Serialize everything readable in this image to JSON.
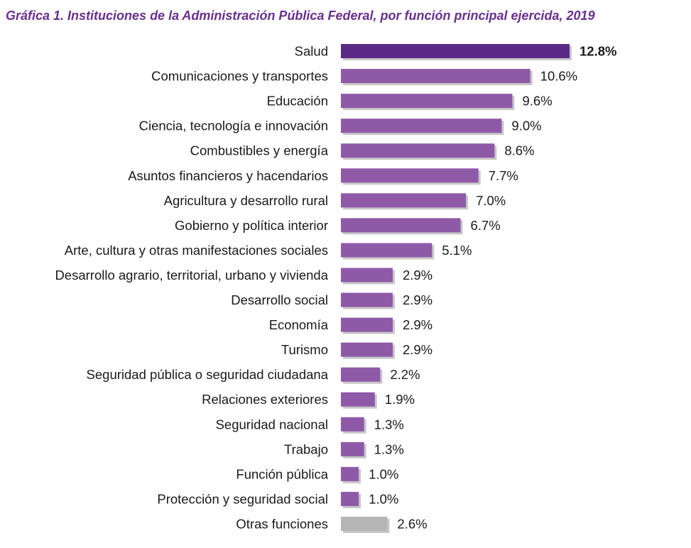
{
  "chart_data": {
    "type": "bar",
    "orientation": "horizontal",
    "title": "Gráfica 1. Instituciones de la Administración Pública Federal, por función principal ejercida, 2019",
    "categories": [
      "Salud",
      "Comunicaciones y transportes",
      "Educación",
      "Ciencia, tecnología e innovación",
      "Combustibles y energía",
      "Asuntos financieros y hacendarios",
      "Agricultura y desarrollo rural",
      "Gobierno y política interior",
      "Arte, cultura y otras manifestaciones sociales",
      "Desarrollo agrario, territorial, urbano y vivienda",
      "Desarrollo social",
      "Economía",
      "Turismo",
      "Seguridad pública o seguridad ciudadana",
      "Relaciones exteriores",
      "Seguridad nacional",
      "Trabajo",
      "Función pública",
      "Protección y seguridad social",
      "Otras funciones"
    ],
    "values": [
      12.8,
      10.6,
      9.6,
      9.0,
      8.6,
      7.7,
      7.0,
      6.7,
      5.1,
      2.9,
      2.9,
      2.9,
      2.9,
      2.2,
      1.9,
      1.3,
      1.3,
      1.0,
      1.0,
      2.6
    ],
    "labels": [
      "12.8%",
      "10.6%",
      "9.6%",
      "9.0%",
      "8.6%",
      "7.7%",
      "7.0%",
      "6.7%",
      "5.1%",
      "2.9%",
      "2.9%",
      "2.9%",
      "2.9%",
      "2.2%",
      "1.9%",
      "1.3%",
      "1.3%",
      "1.0%",
      "1.0%",
      "2.6%"
    ],
    "xlim": [
      0,
      12.8
    ],
    "grid": false,
    "legend": "none",
    "colors": {
      "highlight": "#5b2a86",
      "default": "#8e5aa8",
      "other": "#b5b5b5",
      "shadow": "#c8c8c8",
      "title": "#6a2f8f"
    }
  }
}
